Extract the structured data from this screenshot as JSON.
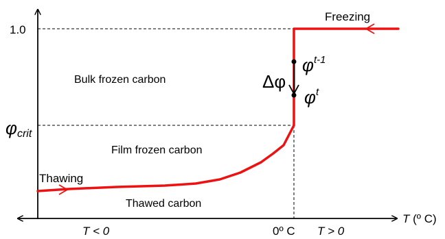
{
  "labels": {
    "freezing": "Freezing",
    "thawing": "Thawing",
    "bulk_frozen": "Bulk frozen carbon",
    "film_frozen": "Film frozen carbon",
    "thawed": "Thawed carbon",
    "y_one": "1.0",
    "phi_crit_main": "φ",
    "phi_crit_sub": "crit",
    "phi_prev_main": "φ",
    "phi_prev_sup": "t-1",
    "phi_cur_main": "φ",
    "phi_cur_sup": "t",
    "delta_phi": "Δφ",
    "t_lt_0": "T < 0",
    "zero_c": "0º C",
    "t_gt_0": "T > 0",
    "t_axis_var": "T",
    "t_axis_unit": " (º C)"
  },
  "colors": {
    "curve": "#ee1111",
    "axis": "#000000"
  }
}
